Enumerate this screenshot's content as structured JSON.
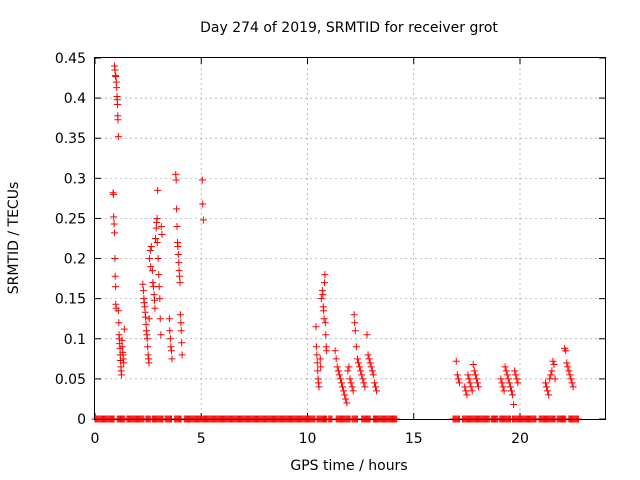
{
  "chart_data": {
    "type": "scatter",
    "title": "Day 274 of 2019, SRMTID for receiver grot",
    "xlabel": "GPS time / hours",
    "ylabel": "SRMTID / TECUs",
    "xlim": [
      0,
      24
    ],
    "ylim": [
      0,
      0.45
    ],
    "xticks": [
      0,
      5,
      10,
      15,
      20
    ],
    "xtick_labels": [
      "0",
      "5",
      "10",
      "15",
      "20"
    ],
    "yticks": [
      0,
      0.05,
      0.1,
      0.15,
      0.2,
      0.25,
      0.3,
      0.35,
      0.4,
      0.45
    ],
    "ytick_labels": [
      "0",
      "0.05",
      "0.1",
      "0.15",
      "0.2",
      "0.25",
      "0.3",
      "0.35",
      "0.4",
      "0.45"
    ],
    "grid": true,
    "marker": "+",
    "series_color": "#ff0000",
    "series": [
      {
        "name": "SRMTID",
        "points": [
          [
            0.85,
            0.282
          ],
          [
            0.87,
            0.28
          ],
          [
            0.88,
            0.252
          ],
          [
            0.9,
            0.243
          ],
          [
            0.92,
            0.232
          ],
          [
            0.94,
            0.2
          ],
          [
            0.95,
            0.178
          ],
          [
            0.97,
            0.165
          ],
          [
            0.98,
            0.143
          ],
          [
            1.0,
            0.138
          ],
          [
            0.92,
            0.44
          ],
          [
            0.94,
            0.435
          ],
          [
            0.96,
            0.428
          ],
          [
            0.98,
            0.427
          ],
          [
            1.0,
            0.42
          ],
          [
            1.02,
            0.413
          ],
          [
            1.04,
            0.402
          ],
          [
            1.05,
            0.398
          ],
          [
            1.06,
            0.392
          ],
          [
            1.07,
            0.378
          ],
          [
            1.08,
            0.373
          ],
          [
            1.1,
            0.352
          ],
          [
            1.1,
            0.135
          ],
          [
            1.12,
            0.12
          ],
          [
            1.13,
            0.105
          ],
          [
            1.15,
            0.1
          ],
          [
            1.16,
            0.094
          ],
          [
            1.18,
            0.088
          ],
          [
            1.19,
            0.08
          ],
          [
            1.2,
            0.073
          ],
          [
            1.22,
            0.065
          ],
          [
            1.23,
            0.06
          ],
          [
            1.25,
            0.055
          ],
          [
            1.27,
            0.098
          ],
          [
            1.28,
            0.09
          ],
          [
            1.3,
            0.083
          ],
          [
            1.32,
            0.08
          ],
          [
            1.33,
            0.075
          ],
          [
            1.35,
            0.07
          ],
          [
            1.38,
            0.112
          ],
          [
            2.25,
            0.168
          ],
          [
            2.28,
            0.16
          ],
          [
            2.3,
            0.15
          ],
          [
            2.32,
            0.145
          ],
          [
            2.34,
            0.14
          ],
          [
            2.36,
            0.133
          ],
          [
            2.38,
            0.127
          ],
          [
            2.4,
            0.118
          ],
          [
            2.42,
            0.11
          ],
          [
            2.44,
            0.105
          ],
          [
            2.46,
            0.1
          ],
          [
            2.48,
            0.09
          ],
          [
            2.5,
            0.08
          ],
          [
            2.52,
            0.075
          ],
          [
            2.54,
            0.07
          ],
          [
            2.55,
            0.125
          ],
          [
            2.57,
            0.2
          ],
          [
            2.6,
            0.21
          ],
          [
            2.62,
            0.19
          ],
          [
            2.65,
            0.215
          ],
          [
            2.7,
            0.185
          ],
          [
            2.72,
            0.17
          ],
          [
            2.75,
            0.165
          ],
          [
            2.78,
            0.155
          ],
          [
            2.8,
            0.148
          ],
          [
            2.82,
            0.138
          ],
          [
            2.85,
            0.225
          ],
          [
            2.88,
            0.238
          ],
          [
            2.9,
            0.245
          ],
          [
            2.92,
            0.25
          ],
          [
            2.93,
            0.22
          ],
          [
            2.95,
            0.285
          ],
          [
            2.97,
            0.2
          ],
          [
            3.0,
            0.18
          ],
          [
            3.02,
            0.165
          ],
          [
            3.05,
            0.15
          ],
          [
            3.07,
            0.125
          ],
          [
            3.1,
            0.105
          ],
          [
            3.12,
            0.24
          ],
          [
            3.15,
            0.23
          ],
          [
            3.5,
            0.125
          ],
          [
            3.52,
            0.11
          ],
          [
            3.55,
            0.1
          ],
          [
            3.57,
            0.09
          ],
          [
            3.6,
            0.085
          ],
          [
            3.62,
            0.075
          ],
          [
            3.8,
            0.305
          ],
          [
            3.82,
            0.298
          ],
          [
            3.84,
            0.262
          ],
          [
            3.86,
            0.24
          ],
          [
            3.88,
            0.22
          ],
          [
            3.9,
            0.215
          ],
          [
            3.92,
            0.205
          ],
          [
            3.94,
            0.195
          ],
          [
            3.96,
            0.185
          ],
          [
            3.98,
            0.178
          ],
          [
            4.0,
            0.17
          ],
          [
            4.02,
            0.13
          ],
          [
            4.04,
            0.12
          ],
          [
            4.06,
            0.11
          ],
          [
            4.08,
            0.095
          ],
          [
            4.1,
            0.08
          ],
          [
            5.05,
            0.298
          ],
          [
            5.07,
            0.268
          ],
          [
            5.1,
            0.248
          ],
          [
            10.4,
            0.115
          ],
          [
            10.42,
            0.09
          ],
          [
            10.44,
            0.08
          ],
          [
            10.46,
            0.07
          ],
          [
            10.48,
            0.06
          ],
          [
            10.5,
            0.05
          ],
          [
            10.52,
            0.045
          ],
          [
            10.54,
            0.04
          ],
          [
            10.6,
            0.075
          ],
          [
            10.62,
            0.065
          ],
          [
            10.65,
            0.15
          ],
          [
            10.7,
            0.16
          ],
          [
            10.72,
            0.155
          ],
          [
            10.74,
            0.14
          ],
          [
            10.76,
            0.135
          ],
          [
            10.78,
            0.125
          ],
          [
            10.8,
            0.17
          ],
          [
            10.82,
            0.18
          ],
          [
            10.84,
            0.12
          ],
          [
            10.86,
            0.105
          ],
          [
            10.88,
            0.09
          ],
          [
            10.9,
            0.085
          ],
          [
            11.3,
            0.085
          ],
          [
            11.35,
            0.075
          ],
          [
            11.4,
            0.065
          ],
          [
            11.45,
            0.06
          ],
          [
            11.5,
            0.055
          ],
          [
            11.55,
            0.05
          ],
          [
            11.6,
            0.045
          ],
          [
            11.65,
            0.04
          ],
          [
            11.7,
            0.035
          ],
          [
            11.75,
            0.03
          ],
          [
            11.8,
            0.025
          ],
          [
            11.85,
            0.02
          ],
          [
            11.9,
            0.06
          ],
          [
            11.95,
            0.065
          ],
          [
            12.0,
            0.05
          ],
          [
            12.05,
            0.045
          ],
          [
            12.1,
            0.04
          ],
          [
            12.15,
            0.035
          ],
          [
            12.2,
            0.13
          ],
          [
            12.22,
            0.12
          ],
          [
            12.25,
            0.11
          ],
          [
            12.3,
            0.09
          ],
          [
            12.35,
            0.075
          ],
          [
            12.4,
            0.07
          ],
          [
            12.45,
            0.065
          ],
          [
            12.5,
            0.06
          ],
          [
            12.55,
            0.055
          ],
          [
            12.6,
            0.05
          ],
          [
            12.65,
            0.045
          ],
          [
            12.7,
            0.04
          ],
          [
            12.8,
            0.105
          ],
          [
            12.85,
            0.08
          ],
          [
            12.9,
            0.075
          ],
          [
            12.95,
            0.07
          ],
          [
            13.0,
            0.065
          ],
          [
            13.05,
            0.06
          ],
          [
            13.1,
            0.055
          ],
          [
            13.15,
            0.045
          ],
          [
            13.2,
            0.04
          ],
          [
            13.25,
            0.035
          ],
          [
            17.0,
            0.072
          ],
          [
            17.05,
            0.055
          ],
          [
            17.1,
            0.05
          ],
          [
            17.15,
            0.045
          ],
          [
            17.4,
            0.04
          ],
          [
            17.45,
            0.035
          ],
          [
            17.5,
            0.03
          ],
          [
            17.55,
            0.055
          ],
          [
            17.6,
            0.05
          ],
          [
            17.65,
            0.045
          ],
          [
            17.7,
            0.04
          ],
          [
            17.75,
            0.035
          ],
          [
            17.8,
            0.068
          ],
          [
            17.85,
            0.06
          ],
          [
            17.9,
            0.055
          ],
          [
            17.95,
            0.05
          ],
          [
            18.0,
            0.045
          ],
          [
            18.05,
            0.04
          ],
          [
            19.1,
            0.05
          ],
          [
            19.15,
            0.045
          ],
          [
            19.2,
            0.04
          ],
          [
            19.25,
            0.035
          ],
          [
            19.3,
            0.065
          ],
          [
            19.35,
            0.06
          ],
          [
            19.4,
            0.055
          ],
          [
            19.45,
            0.05
          ],
          [
            19.5,
            0.045
          ],
          [
            19.55,
            0.04
          ],
          [
            19.6,
            0.035
          ],
          [
            19.65,
            0.03
          ],
          [
            19.7,
            0.018
          ],
          [
            19.75,
            0.06
          ],
          [
            19.8,
            0.055
          ],
          [
            19.85,
            0.05
          ],
          [
            19.9,
            0.045
          ],
          [
            21.2,
            0.045
          ],
          [
            21.25,
            0.04
          ],
          [
            21.3,
            0.035
          ],
          [
            21.35,
            0.03
          ],
          [
            21.4,
            0.05
          ],
          [
            21.45,
            0.055
          ],
          [
            21.5,
            0.06
          ],
          [
            21.55,
            0.072
          ],
          [
            21.6,
            0.068
          ],
          [
            21.65,
            0.05
          ],
          [
            22.1,
            0.088
          ],
          [
            22.15,
            0.085
          ],
          [
            22.2,
            0.07
          ],
          [
            22.25,
            0.065
          ],
          [
            22.3,
            0.06
          ],
          [
            22.35,
            0.055
          ],
          [
            22.4,
            0.05
          ],
          [
            22.45,
            0.045
          ],
          [
            22.5,
            0.04
          ]
        ],
        "zero_segments": [
          [
            0.0,
            0.9
          ],
          [
            1.05,
            1.4
          ],
          [
            1.5,
            2.3
          ],
          [
            2.4,
            2.6
          ],
          [
            2.7,
            3.2
          ],
          [
            3.3,
            3.6
          ],
          [
            3.75,
            4.05
          ],
          [
            4.2,
            10.35
          ],
          [
            10.45,
            10.9
          ],
          [
            11.0,
            11.15
          ],
          [
            11.35,
            12.0
          ],
          [
            12.1,
            12.35
          ],
          [
            12.55,
            12.95
          ],
          [
            13.1,
            14.2
          ],
          [
            16.85,
            17.15
          ],
          [
            17.3,
            18.55
          ],
          [
            18.65,
            18.95
          ],
          [
            19.05,
            19.55
          ],
          [
            19.65,
            20.75
          ],
          [
            20.9,
            21.05
          ],
          [
            21.1,
            21.65
          ],
          [
            21.75,
            22.15
          ],
          [
            22.3,
            22.75
          ]
        ]
      }
    ]
  }
}
